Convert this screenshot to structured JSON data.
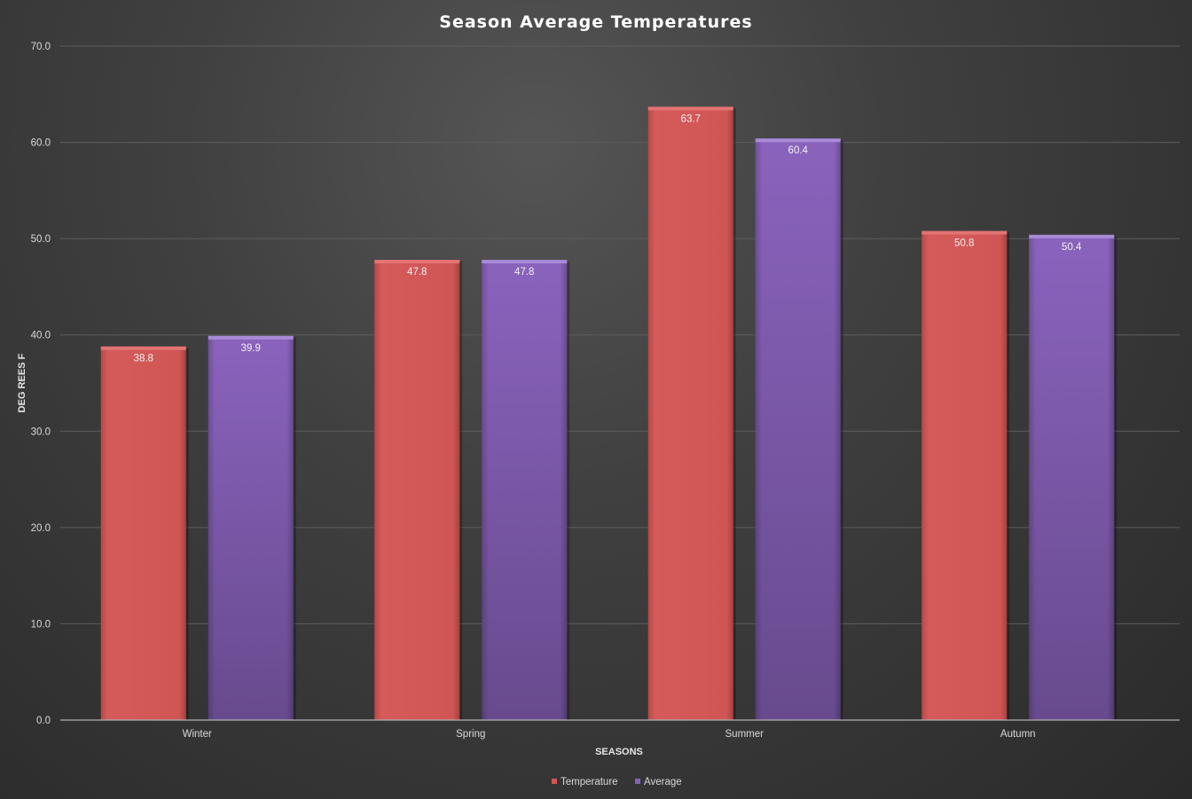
{
  "chart_data": {
    "type": "bar",
    "title": "Season Average Temperatures",
    "xlabel": "SEASONS",
    "ylabel": "DEG REES F",
    "categories": [
      "Winter",
      "Spring",
      "Summer",
      "Autumn"
    ],
    "series": [
      {
        "name": "Temperature",
        "color": "#d05655",
        "values": [
          38.8,
          47.8,
          63.7,
          50.8
        ]
      },
      {
        "name": "Average",
        "color": "#8660b8",
        "values": [
          39.9,
          47.8,
          60.4,
          50.4
        ]
      }
    ],
    "ylim": [
      0,
      70
    ],
    "yticks": [
      "0.0",
      "10.0",
      "20.0",
      "30.0",
      "40.0",
      "50.0",
      "60.0",
      "70.0"
    ],
    "value_labels": [
      [
        "38.8",
        "47.8",
        "63.7",
        "50.8"
      ],
      [
        "39.9",
        "47.8",
        "60.4",
        "50.4"
      ]
    ],
    "grid": true,
    "legend": "bottom"
  }
}
